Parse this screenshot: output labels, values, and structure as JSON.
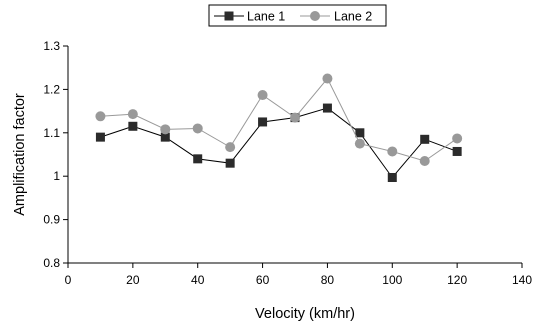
{
  "chart_data": {
    "type": "line",
    "title": "",
    "xlabel": "Velocity (km/hr)",
    "ylabel": "Amplification factor",
    "xlim": [
      0,
      140
    ],
    "ylim": [
      0.8,
      1.3
    ],
    "xticks": [
      0,
      20,
      40,
      60,
      80,
      100,
      120,
      140
    ],
    "yticks": [
      0.8,
      0.9,
      1,
      1.1,
      1.2,
      1.3
    ],
    "xtick_labels": [
      "0",
      "20",
      "40",
      "60",
      "80",
      "100",
      "120",
      "140"
    ],
    "ytick_labels": [
      "0.8",
      "0.9",
      "1",
      "1.1",
      "1.2",
      "1.3"
    ],
    "grid": false,
    "legend_position": "top",
    "x": [
      10,
      20,
      30,
      40,
      50,
      60,
      70,
      80,
      90,
      100,
      110,
      120
    ],
    "series": [
      {
        "name": "Lane 1",
        "marker": "square",
        "color": "#000000",
        "marker_color": "#2b2b2b",
        "values": [
          1.09,
          1.115,
          1.09,
          1.04,
          1.03,
          1.125,
          1.135,
          1.157,
          1.1,
          0.997,
          1.085,
          1.057
        ]
      },
      {
        "name": "Lane 2",
        "marker": "circle",
        "color": "#999999",
        "marker_color": "#999999",
        "values": [
          1.138,
          1.143,
          1.108,
          1.11,
          1.067,
          1.187,
          1.135,
          1.225,
          1.075,
          1.057,
          1.035,
          1.087
        ]
      }
    ]
  }
}
